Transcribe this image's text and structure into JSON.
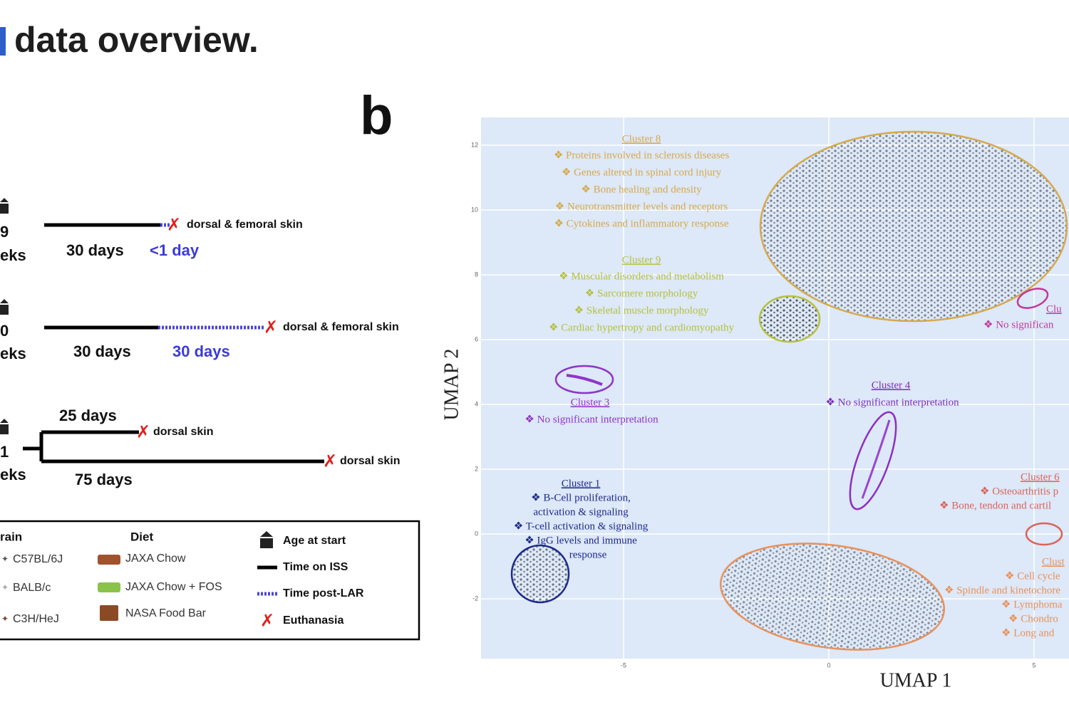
{
  "header": {
    "title": "data overview."
  },
  "panel_a": {
    "rows": [
      {
        "age": "9",
        "age_unit": "eks",
        "iss": "30 days",
        "post": "<1 day",
        "site": "dorsal & femoral skin"
      },
      {
        "age": "0",
        "age_unit": "eks",
        "iss": "30 days",
        "post": "30 days",
        "site": "dorsal & femoral skin"
      }
    ],
    "branch": {
      "age": "1",
      "age_unit": "eks",
      "short": "25 days",
      "short_site": "dorsal skin",
      "long": "75 days",
      "long_site": "dorsal skin"
    },
    "legend": {
      "strain_header": "rain",
      "strains": [
        "C57BL/6J",
        "BALB/c",
        "C3H/HeJ"
      ],
      "diet_header": "Diet",
      "diets": [
        "JAXA Chow",
        "JAXA Chow + FOS",
        "NASA Food Bar"
      ],
      "keys": [
        "Age at start",
        "Time on ISS",
        "Time post-LAR",
        "Euthanasia"
      ]
    }
  },
  "panel_b": {
    "label": "b",
    "x_label": "UMAP 1",
    "y_label": "UMAP 2",
    "xticks": [
      -5,
      0,
      5
    ],
    "yticks": [
      12,
      10,
      8,
      6,
      4,
      2,
      0,
      -2
    ],
    "clusters": [
      {
        "title": "Cluster 8",
        "items": [
          "❖ Proteins involved in sclerosis diseases",
          "❖ Genes altered in spinal cord injury",
          "❖ Bone healing and density",
          "❖ Neurotransmitter levels and receptors",
          "❖ Cytokines and inflammatory response"
        ]
      },
      {
        "title": "Cluster 9",
        "items": [
          "❖ Muscular disorders and metabolism",
          "❖ Sarcomere morphology",
          "❖ Skeletal muscle morphology",
          "❖ Cardiac hypertropy and cardiomyopathy"
        ]
      },
      {
        "title": "Cluster 3",
        "items": [
          "❖ No significant interpretation"
        ]
      },
      {
        "title": "Cluster 4",
        "items": [
          "❖ No significant interpretation"
        ]
      },
      {
        "title": "Cluster 1",
        "items": [
          "❖ B-Cell proliferation,",
          "activation & signaling",
          "❖ T-cell activation & signaling",
          "❖ IgG levels and immune",
          "response"
        ]
      },
      {
        "title": "Cluster 6",
        "items": [
          "❖ Osteoarthritis p",
          "❖ Bone, tendon and cartil"
        ]
      },
      {
        "title": "Clu",
        "items": [
          "❖ No significan"
        ]
      },
      {
        "title": "Clust",
        "items": [
          "❖ Cell cycle",
          "❖ Spindle and kinetochore",
          "❖ Lymphoma",
          "❖ Chondro",
          "❖ Long and"
        ]
      }
    ]
  }
}
